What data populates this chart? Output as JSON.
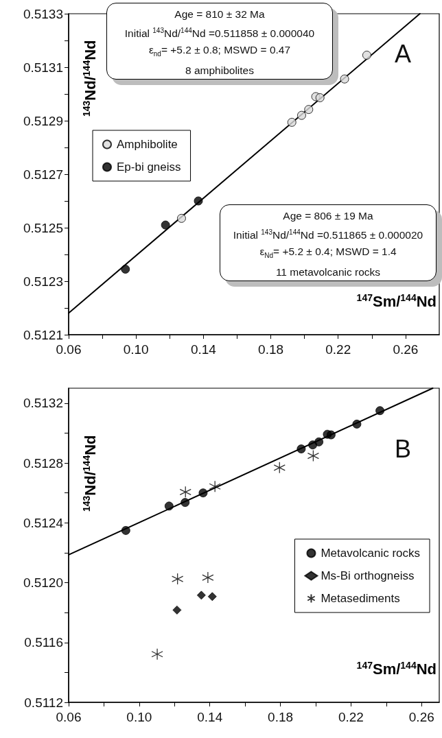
{
  "chart_data": [
    {
      "type": "scatter",
      "title": "A",
      "xlabel": "$^{147}$Sm/$^{144}$Nd",
      "ylabel": "$^{143}$Nd/$^{144}$Nd",
      "xlim": [
        0.06,
        0.28
      ],
      "ylim": [
        0.5121,
        0.5133
      ],
      "xticks": [
        {
          "value": 0.06,
          "label": "0.06"
        },
        {
          "value": 0.08,
          "label": null
        },
        {
          "value": 0.1,
          "label": "0.10"
        },
        {
          "value": 0.12,
          "label": null
        },
        {
          "value": 0.14,
          "label": "0.14"
        },
        {
          "value": 0.16,
          "label": null
        },
        {
          "value": 0.18,
          "label": "0.18"
        },
        {
          "value": 0.2,
          "label": null
        },
        {
          "value": 0.22,
          "label": "0.22"
        },
        {
          "value": 0.24,
          "label": null
        },
        {
          "value": 0.26,
          "label": "0.26"
        }
      ],
      "yticks": [
        0.5121,
        {
          "value": 0.5122,
          "label": null
        },
        0.5123,
        {
          "value": 0.5124,
          "label": null
        },
        0.5125,
        {
          "value": 0.5126,
          "label": null
        },
        0.5127,
        {
          "value": 0.5128,
          "label": null
        },
        0.5129,
        {
          "value": 0.513,
          "label": null
        },
        0.5131,
        {
          "value": 0.5132,
          "label": null
        },
        0.5133
      ],
      "legend": "top left",
      "grid": false,
      "annotations": [
        "Age = 810 ± 32 Ma\nInitial $^{143}$Nd/$^{144}$Nd =0.511858 ± 0.000040\nε$_{nd}$= +5.2 ± 0.8; MSWD = 0.47\n8 amphibolites",
        "Age = 806 ± 19 Ma\nInitial $^{143}$Nd/$^{144}$Nd =0.511865 ± 0.000020\nε$_{Nd}$= +5.2 ± 0.4; MSWD = 1.4\n11 metavolcanic rocks"
      ],
      "series": [
        {
          "type": "line",
          "color": "#000000",
          "marker": "none",
          "line_style": "solid",
          "x": [
            0.06,
            0.2685
          ],
          "values": [
            0.512181,
            0.5133
          ]
        },
        {
          "name": "Amphibolite",
          "color": "#d9d9d9",
          "marker": "circle",
          "x": [
            0.237,
            0.2238,
            0.2067,
            0.2092,
            0.2025,
            0.1983,
            0.1925,
            0.127
          ],
          "values": [
            0.513145,
            0.513056,
            0.51299,
            0.512986,
            0.512942,
            0.51292,
            0.512894,
            0.512535
          ]
        },
        {
          "name": "Ep-bi gneiss",
          "color": "#000000",
          "marker": "circle",
          "x": [
            0.137,
            0.1175,
            0.0937
          ],
          "values": [
            0.5126,
            0.51251,
            0.512345
          ]
        }
      ]
    },
    {
      "type": "scatter",
      "title": "B",
      "xlabel": "$^{147}$Sm/$^{144}$Nd",
      "ylabel": "$^{143}$Nd/$^{144}$Nd",
      "xlim": [
        0.06,
        0.27
      ],
      "ylim": [
        0.5112,
        0.5133
      ],
      "xticks": [
        {
          "value": 0.06,
          "label": "0.06"
        },
        {
          "value": 0.08,
          "label": null
        },
        {
          "value": 0.1,
          "label": "0.10"
        },
        {
          "value": 0.12,
          "label": null
        },
        {
          "value": 0.14,
          "label": "0.14"
        },
        {
          "value": 0.16,
          "label": null
        },
        {
          "value": 0.18,
          "label": "0.18"
        },
        {
          "value": 0.2,
          "label": null
        },
        {
          "value": 0.22,
          "label": "0.22"
        },
        {
          "value": 0.24,
          "label": null
        },
        {
          "value": 0.26,
          "label": "0.26"
        }
      ],
      "yticks": [
        0.5112,
        {
          "value": 0.5114,
          "label": null
        },
        0.5116,
        {
          "value": 0.5118,
          "label": null
        },
        {
          "value": 0.512,
          "label": "0.5120"
        },
        {
          "value": 0.5122,
          "label": null
        },
        0.5124,
        {
          "value": 0.5126,
          "label": null
        },
        0.5128,
        {
          "value": 0.513,
          "label": null
        },
        0.5132
      ],
      "legend": "right",
      "grid": false,
      "series": [
        {
          "type": "line",
          "color": "#000000",
          "marker": "none",
          "line_style": "solid",
          "x": [
            0.06,
            0.2663
          ],
          "values": [
            0.512186,
            0.5133
          ]
        },
        {
          "name": "Metavolcanic rocks",
          "color": "#000000",
          "marker": "circle",
          "x": [
            0.0924,
            0.1169,
            0.126,
            0.1362,
            0.1918,
            0.1983,
            0.2018,
            0.2066,
            0.2087,
            0.2233,
            0.2364
          ],
          "values": [
            0.512349,
            0.512512,
            0.512536,
            0.5126,
            0.512894,
            0.512921,
            0.512941,
            0.512992,
            0.512988,
            0.51306,
            0.51315
          ]
        },
        {
          "name": "Ms-Bi orthogneiss",
          "color": "#000000",
          "marker": "diamond",
          "x": [
            0.1214,
            0.1352,
            0.1414
          ],
          "values": [
            0.511817,
            0.511916,
            0.511907
          ]
        },
        {
          "name": "Metasediments",
          "color": "#000000",
          "marker": "cross",
          "x": [
            0.1262,
            0.1429,
            0.1795,
            0.1986,
            0.1217,
            0.1389,
            0.1102
          ],
          "values": [
            0.512606,
            0.512643,
            0.512769,
            0.512848,
            0.512025,
            0.512034,
            0.511522
          ]
        }
      ]
    }
  ]
}
